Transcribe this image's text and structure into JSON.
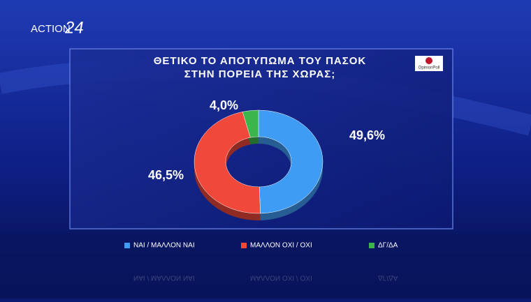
{
  "branding": {
    "channel": "ACTION",
    "channel_number": "24",
    "pollster": "OpinionPoll"
  },
  "chart_data": {
    "type": "donut",
    "title": [
      "ΘΕΤΙΚΟ ΤΟ ΑΠΟΤΥΠΩΜΑ ΤΟΥ ΠΑΣΟΚ",
      "ΣΤΗΝ ΠΟΡΕΙΑ ΤΗΣ ΧΩΡΑΣ;"
    ],
    "categories": [
      "ΝΑΙ / ΜΑΛΛΟΝ ΝΑΙ",
      "ΜΑΛΛΟΝ ΟΧΙ / ΟΧΙ",
      "ΔΓ/ΔΑ"
    ],
    "values": [
      49.6,
      46.5,
      4.0
    ],
    "value_labels": [
      "49,6%",
      "46,5%",
      "4,0%"
    ],
    "colors": [
      "#3f9cf5",
      "#f0483a",
      "#3cb54a"
    ],
    "legend": "bottom"
  }
}
